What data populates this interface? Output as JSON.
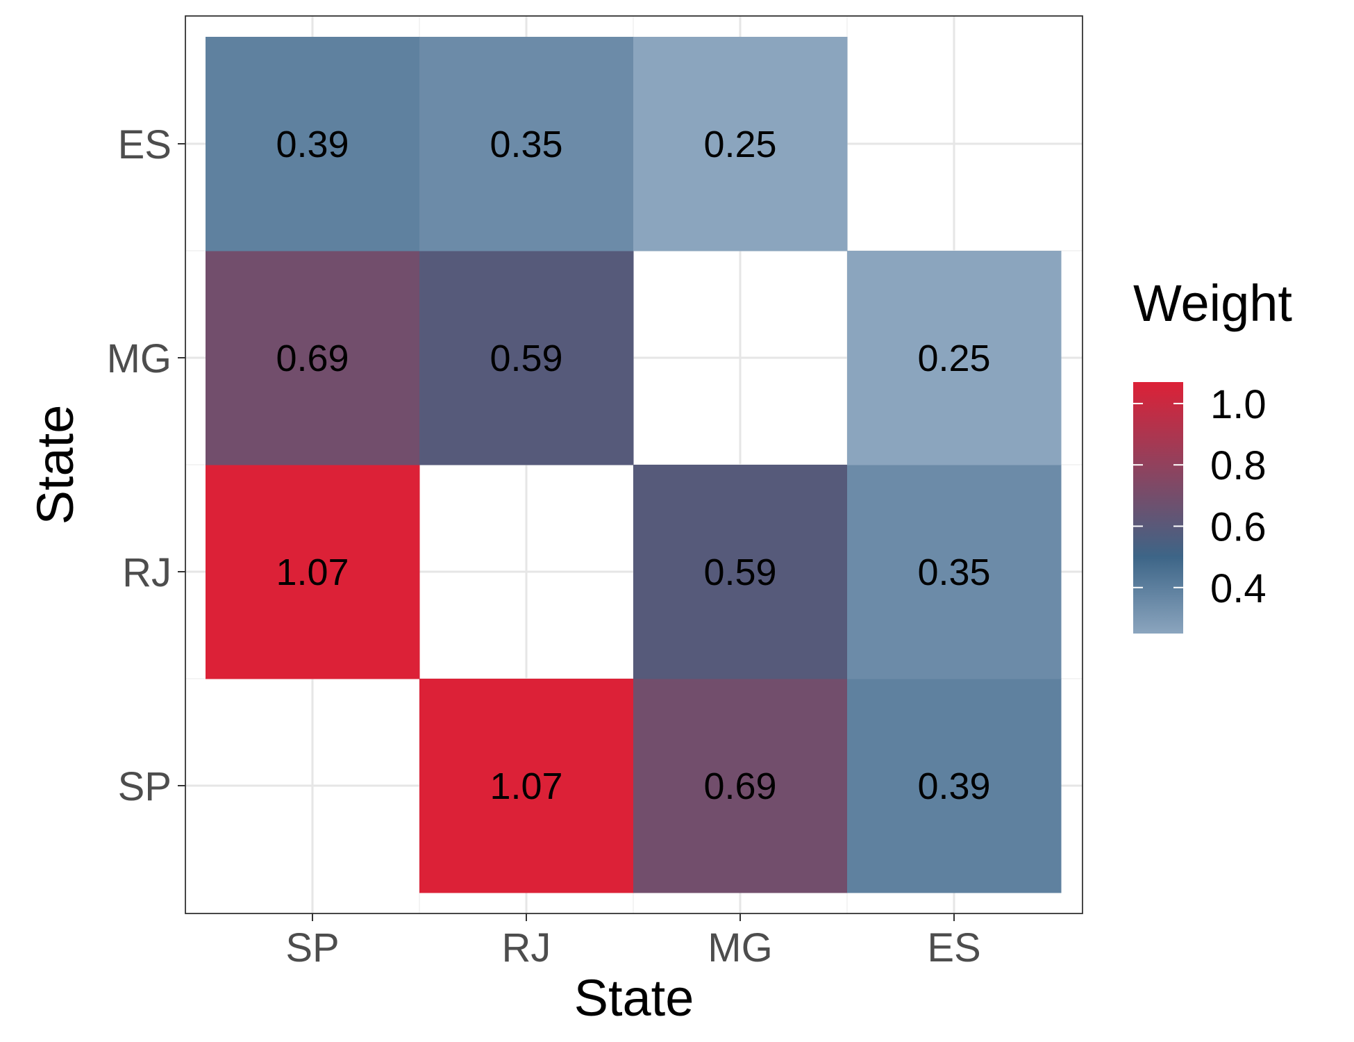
{
  "chart_data": {
    "type": "heatmap",
    "title": "",
    "xlabel": "State",
    "ylabel": "State",
    "x_categories": [
      "SP",
      "RJ",
      "MG",
      "ES"
    ],
    "y_categories": [
      "SP",
      "RJ",
      "MG",
      "ES"
    ],
    "cells": [
      {
        "x": "RJ",
        "y": "SP",
        "value": 1.07,
        "label": "1.07"
      },
      {
        "x": "MG",
        "y": "SP",
        "value": 0.69,
        "label": "0.69"
      },
      {
        "x": "ES",
        "y": "SP",
        "value": 0.39,
        "label": "0.39"
      },
      {
        "x": "SP",
        "y": "RJ",
        "value": 1.07,
        "label": "1.07"
      },
      {
        "x": "MG",
        "y": "RJ",
        "value": 0.59,
        "label": "0.59"
      },
      {
        "x": "ES",
        "y": "RJ",
        "value": 0.35,
        "label": "0.35"
      },
      {
        "x": "SP",
        "y": "MG",
        "value": 0.69,
        "label": "0.69"
      },
      {
        "x": "RJ",
        "y": "MG",
        "value": 0.59,
        "label": "0.59"
      },
      {
        "x": "ES",
        "y": "MG",
        "value": 0.25,
        "label": "0.25"
      },
      {
        "x": "SP",
        "y": "ES",
        "value": 0.39,
        "label": "0.39"
      },
      {
        "x": "RJ",
        "y": "ES",
        "value": 0.35,
        "label": "0.35"
      },
      {
        "x": "MG",
        "y": "ES",
        "value": 0.25,
        "label": "0.25"
      }
    ],
    "legend": {
      "title": "Weight",
      "position": "right",
      "min": 0.25,
      "max": 1.07,
      "ticks": [
        0.4,
        0.6,
        0.8,
        1.0
      ],
      "tick_labels": [
        "0.4",
        "0.6",
        "0.8",
        "1.0"
      ]
    },
    "color_scale": {
      "low": "#8BA5BE",
      "mid": "#3D6587",
      "mid_value": 0.5,
      "high": "#DC2137"
    },
    "grid": true
  }
}
